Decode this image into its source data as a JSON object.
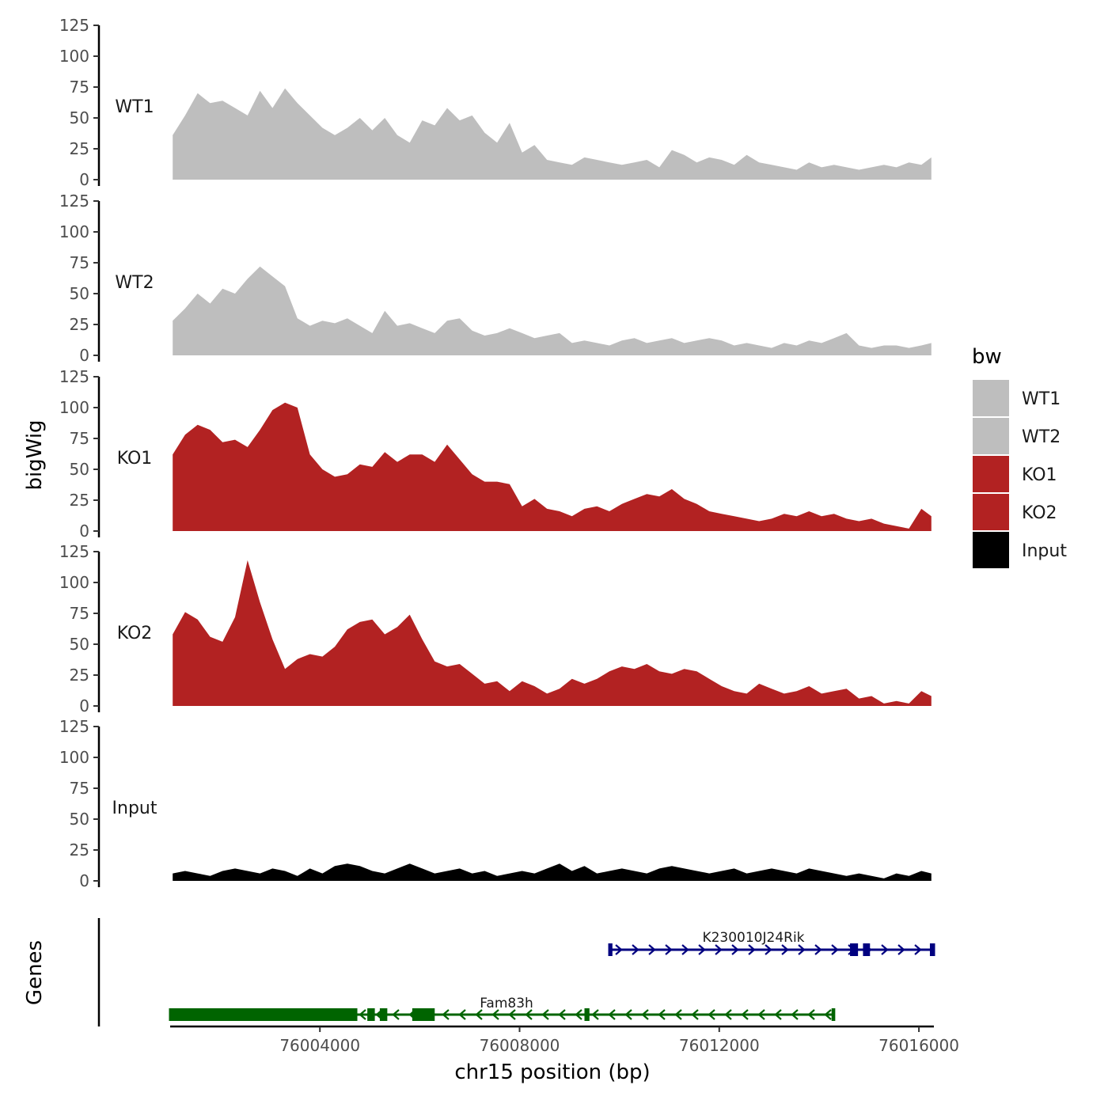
{
  "chart_data": {
    "type": "area",
    "ylabel": "bigWig",
    "genes_label": "Genes",
    "xlabel": "chr15 position (bp)",
    "xlim": [
      76001000,
      76016300
    ],
    "x_ticks": [
      76004000,
      76008000,
      76012000,
      76016000
    ],
    "x_tick_labels": [
      "76004000",
      "76008000",
      "76012000",
      "76016000"
    ],
    "ylim": [
      0,
      125
    ],
    "y_ticks": [
      0,
      25,
      50,
      75,
      100,
      125
    ],
    "y_tick_labels": [
      "0",
      "25",
      "50",
      "75",
      "100",
      "125"
    ],
    "legend": {
      "title": "bw",
      "position": "right",
      "entries": [
        {
          "name": "WT1",
          "color": "#bebebe"
        },
        {
          "name": "WT2",
          "color": "#bebebe"
        },
        {
          "name": "KO1",
          "color": "#b22222"
        },
        {
          "name": "KO2",
          "color": "#b22222"
        },
        {
          "name": "Input",
          "color": "#000000"
        }
      ]
    },
    "series": [
      {
        "name": "WT1",
        "color": "#bebebe",
        "x": [
          76001050,
          76001300,
          76001550,
          76001800,
          76002050,
          76002300,
          76002550,
          76002800,
          76003050,
          76003300,
          76003550,
          76003800,
          76004050,
          76004300,
          76004550,
          76004800,
          76005050,
          76005300,
          76005550,
          76005800,
          76006050,
          76006300,
          76006550,
          76006800,
          76007050,
          76007300,
          76007550,
          76007800,
          76008050,
          76008300,
          76008550,
          76008800,
          76009050,
          76009300,
          76009550,
          76009800,
          76010050,
          76010300,
          76010550,
          76010800,
          76011050,
          76011300,
          76011550,
          76011800,
          76012050,
          76012300,
          76012550,
          76012800,
          76013050,
          76013300,
          76013550,
          76013800,
          76014050,
          76014300,
          76014550,
          76014800,
          76015050,
          76015300,
          76015550,
          76015800,
          76016050,
          76016250
        ],
        "values": [
          36,
          52,
          70,
          62,
          64,
          58,
          52,
          72,
          58,
          74,
          62,
          52,
          42,
          36,
          42,
          50,
          40,
          50,
          36,
          30,
          48,
          44,
          58,
          48,
          52,
          38,
          30,
          46,
          22,
          28,
          16,
          14,
          12,
          18,
          16,
          14,
          12,
          14,
          16,
          10,
          24,
          20,
          14,
          18,
          16,
          12,
          20,
          14,
          12,
          10,
          8,
          14,
          10,
          12,
          10,
          8,
          10,
          12,
          10,
          14,
          12,
          18
        ]
      },
      {
        "name": "WT2",
        "color": "#bebebe",
        "x": [
          76001050,
          76001300,
          76001550,
          76001800,
          76002050,
          76002300,
          76002550,
          76002800,
          76003050,
          76003300,
          76003550,
          76003800,
          76004050,
          76004300,
          76004550,
          76004800,
          76005050,
          76005300,
          76005550,
          76005800,
          76006050,
          76006300,
          76006550,
          76006800,
          76007050,
          76007300,
          76007550,
          76007800,
          76008050,
          76008300,
          76008550,
          76008800,
          76009050,
          76009300,
          76009550,
          76009800,
          76010050,
          76010300,
          76010550,
          76010800,
          76011050,
          76011300,
          76011550,
          76011800,
          76012050,
          76012300,
          76012550,
          76012800,
          76013050,
          76013300,
          76013550,
          76013800,
          76014050,
          76014300,
          76014550,
          76014800,
          76015050,
          76015300,
          76015550,
          76015800,
          76016050,
          76016250
        ],
        "values": [
          28,
          38,
          50,
          42,
          54,
          50,
          62,
          72,
          64,
          56,
          30,
          24,
          28,
          26,
          30,
          24,
          18,
          36,
          24,
          26,
          22,
          18,
          28,
          30,
          20,
          16,
          18,
          22,
          18,
          14,
          16,
          18,
          10,
          12,
          10,
          8,
          12,
          14,
          10,
          12,
          14,
          10,
          12,
          14,
          12,
          8,
          10,
          8,
          6,
          10,
          8,
          12,
          10,
          14,
          18,
          8,
          6,
          8,
          8,
          6,
          8,
          10
        ]
      },
      {
        "name": "KO1",
        "color": "#b22222",
        "x": [
          76001050,
          76001300,
          76001550,
          76001800,
          76002050,
          76002300,
          76002550,
          76002800,
          76003050,
          76003300,
          76003550,
          76003800,
          76004050,
          76004300,
          76004550,
          76004800,
          76005050,
          76005300,
          76005550,
          76005800,
          76006050,
          76006300,
          76006550,
          76006800,
          76007050,
          76007300,
          76007550,
          76007800,
          76008050,
          76008300,
          76008550,
          76008800,
          76009050,
          76009300,
          76009550,
          76009800,
          76010050,
          76010300,
          76010550,
          76010800,
          76011050,
          76011300,
          76011550,
          76011800,
          76012050,
          76012300,
          76012550,
          76012800,
          76013050,
          76013300,
          76013550,
          76013800,
          76014050,
          76014300,
          76014550,
          76014800,
          76015050,
          76015300,
          76015550,
          76015800,
          76016050,
          76016250
        ],
        "values": [
          62,
          78,
          86,
          82,
          72,
          74,
          68,
          82,
          98,
          104,
          100,
          62,
          50,
          44,
          46,
          54,
          52,
          64,
          56,
          62,
          62,
          56,
          70,
          58,
          46,
          40,
          40,
          38,
          20,
          26,
          18,
          16,
          12,
          18,
          20,
          16,
          22,
          26,
          30,
          28,
          34,
          26,
          22,
          16,
          14,
          12,
          10,
          8,
          10,
          14,
          12,
          16,
          12,
          14,
          10,
          8,
          10,
          6,
          4,
          2,
          18,
          12
        ]
      },
      {
        "name": "KO2",
        "color": "#b22222",
        "x": [
          76001050,
          76001300,
          76001550,
          76001800,
          76002050,
          76002300,
          76002550,
          76002800,
          76003050,
          76003300,
          76003550,
          76003800,
          76004050,
          76004300,
          76004550,
          76004800,
          76005050,
          76005300,
          76005550,
          76005800,
          76006050,
          76006300,
          76006550,
          76006800,
          76007050,
          76007300,
          76007550,
          76007800,
          76008050,
          76008300,
          76008550,
          76008800,
          76009050,
          76009300,
          76009550,
          76009800,
          76010050,
          76010300,
          76010550,
          76010800,
          76011050,
          76011300,
          76011550,
          76011800,
          76012050,
          76012300,
          76012550,
          76012800,
          76013050,
          76013300,
          76013550,
          76013800,
          76014050,
          76014300,
          76014550,
          76014800,
          76015050,
          76015300,
          76015550,
          76015800,
          76016050,
          76016250
        ],
        "values": [
          58,
          76,
          70,
          56,
          52,
          72,
          118,
          84,
          54,
          30,
          38,
          42,
          40,
          48,
          62,
          68,
          70,
          58,
          64,
          74,
          54,
          36,
          32,
          34,
          26,
          18,
          20,
          12,
          20,
          16,
          10,
          14,
          22,
          18,
          22,
          28,
          32,
          30,
          34,
          28,
          26,
          30,
          28,
          22,
          16,
          12,
          10,
          18,
          14,
          10,
          12,
          16,
          10,
          12,
          14,
          6,
          8,
          2,
          4,
          2,
          12,
          8
        ]
      },
      {
        "name": "Input",
        "color": "#000000",
        "x": [
          76001050,
          76001300,
          76001550,
          76001800,
          76002050,
          76002300,
          76002550,
          76002800,
          76003050,
          76003300,
          76003550,
          76003800,
          76004050,
          76004300,
          76004550,
          76004800,
          76005050,
          76005300,
          76005550,
          76005800,
          76006050,
          76006300,
          76006550,
          76006800,
          76007050,
          76007300,
          76007550,
          76007800,
          76008050,
          76008300,
          76008550,
          76008800,
          76009050,
          76009300,
          76009550,
          76009800,
          76010050,
          76010300,
          76010550,
          76010800,
          76011050,
          76011300,
          76011550,
          76011800,
          76012050,
          76012300,
          76012550,
          76012800,
          76013050,
          76013300,
          76013550,
          76013800,
          76014050,
          76014300,
          76014550,
          76014800,
          76015050,
          76015300,
          76015550,
          76015800,
          76016050,
          76016250
        ],
        "values": [
          6,
          8,
          6,
          4,
          8,
          10,
          8,
          6,
          10,
          8,
          4,
          10,
          6,
          12,
          14,
          12,
          8,
          6,
          10,
          14,
          10,
          6,
          8,
          10,
          6,
          8,
          4,
          6,
          8,
          6,
          10,
          14,
          8,
          12,
          6,
          8,
          10,
          8,
          6,
          10,
          12,
          10,
          8,
          6,
          8,
          10,
          6,
          8,
          10,
          8,
          6,
          10,
          8,
          6,
          4,
          6,
          4,
          2,
          6,
          4,
          8,
          6
        ]
      }
    ],
    "genes": [
      {
        "name": "K230010J24Rik",
        "color": "#000080",
        "strand": "+",
        "start": 76009800,
        "end": 76016300,
        "exons": [
          [
            76009780,
            76009860
          ],
          [
            76014620,
            76014780
          ],
          [
            76014880,
            76015020
          ],
          [
            76016220,
            76016300
          ]
        ]
      },
      {
        "name": "Fam83h",
        "color": "#006400",
        "strand": "-",
        "start": 76001000,
        "end": 76014300,
        "exons": [
          [
            76001000,
            76004750
          ],
          [
            76004950,
            76005100
          ],
          [
            76005200,
            76005350
          ],
          [
            76005850,
            76006300
          ],
          [
            76009300,
            76009400
          ],
          [
            76014250,
            76014300
          ]
        ]
      }
    ]
  }
}
